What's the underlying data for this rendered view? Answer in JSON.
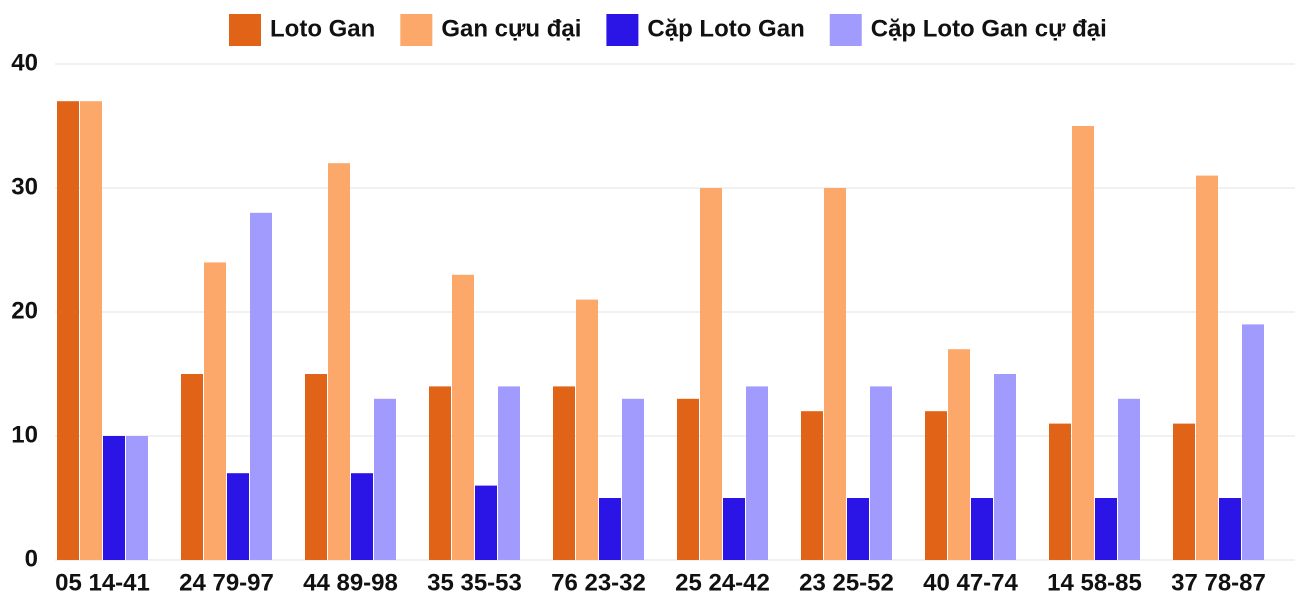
{
  "chart_data": {
    "type": "bar",
    "categories": [
      "05 14-41",
      "24 79-97",
      "44 89-98",
      "35 35-53",
      "76 23-32",
      "25 24-42",
      "23 25-52",
      "40 47-74",
      "14 58-85",
      "37 78-87"
    ],
    "series": [
      {
        "name": "Loto Gan",
        "color": "#e06317",
        "values": [
          37,
          15,
          15,
          14,
          14,
          13,
          12,
          12,
          11,
          11
        ]
      },
      {
        "name": "Gan cựu đại",
        "color": "#fca86a",
        "values": [
          37,
          24,
          32,
          23,
          21,
          30,
          30,
          17,
          35,
          31
        ]
      },
      {
        "name": "Cặp Loto Gan",
        "color": "#2a15e6",
        "values": [
          10,
          7,
          7,
          6,
          5,
          5,
          5,
          5,
          5,
          5
        ]
      },
      {
        "name": "Cặp Loto Gan cự đại",
        "color": "#a29bfe",
        "values": [
          10,
          28,
          13,
          14,
          13,
          14,
          14,
          15,
          13,
          19
        ]
      }
    ],
    "ylim": [
      0,
      40
    ],
    "yticks": [
      0,
      10,
      20,
      30,
      40
    ],
    "grid": true,
    "legend": "top"
  }
}
